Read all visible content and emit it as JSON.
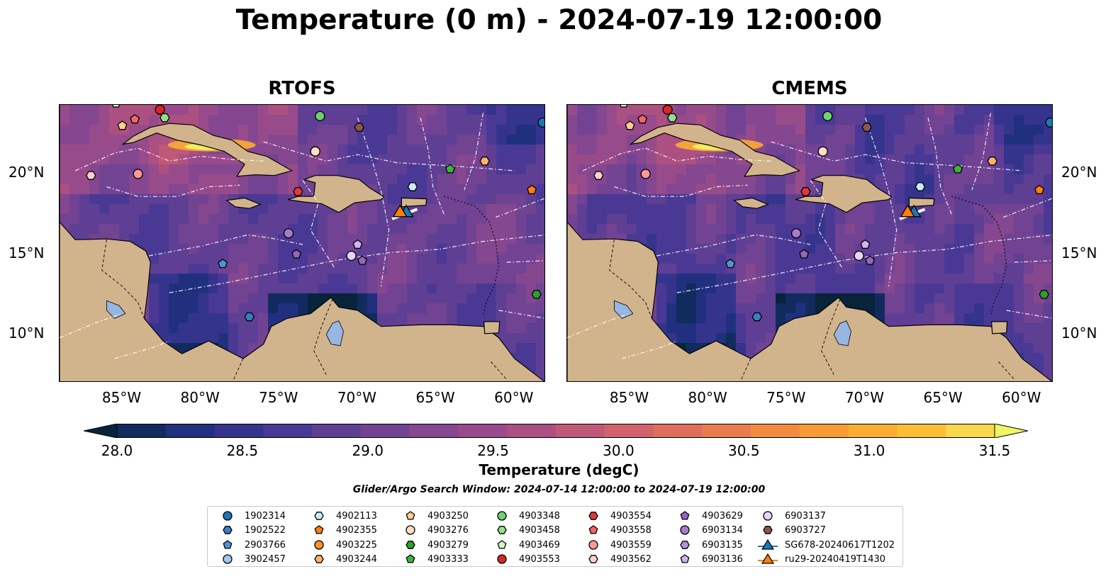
{
  "figure": {
    "title": "Temperature (0 m) - 2024-07-19 12:00:00",
    "panels": [
      {
        "title": "RTOFS"
      },
      {
        "title": "CMEMS"
      }
    ],
    "lon_ticks": [
      "85°W",
      "80°W",
      "75°W",
      "70°W",
      "65°W",
      "60°W"
    ],
    "lat_ticks": [
      "20°N",
      "15°N",
      "10°N"
    ],
    "lon_range": [
      -89,
      -58
    ],
    "lat_range": [
      7,
      24.3
    ]
  },
  "colorbar": {
    "label": "Temperature (degC)",
    "range": [
      28.0,
      31.5
    ],
    "step": 0.25,
    "ticks": [
      "28.0",
      "28.5",
      "29.0",
      "29.5",
      "30.0",
      "30.5",
      "31.0",
      "31.5"
    ],
    "extend": "both",
    "colors": [
      "#07243a",
      "#112b5e",
      "#21307e",
      "#35348d",
      "#4a3994",
      "#5f3f94",
      "#724393",
      "#85478f",
      "#984b8a",
      "#ac5082",
      "#c05878",
      "#d2626b",
      "#e06e5c",
      "#ea7b4d",
      "#f28b40",
      "#f79b36",
      "#fbac33",
      "#fdbe36",
      "#f8d84a",
      "#eef566"
    ]
  },
  "search_window": "Glider/Argo Search Window: 2024-07-14 12:00:00 to 2024-07-19 12:00:00",
  "legend": {
    "items": [
      {
        "label": "1902314",
        "marker": "circle",
        "color": "#1f77b4"
      },
      {
        "label": "1902522",
        "marker": "hexagon",
        "color": "#3a7fc0"
      },
      {
        "label": "2903766",
        "marker": "pentagon",
        "color": "#4f94d0"
      },
      {
        "label": "3902457",
        "marker": "circle",
        "color": "#9ec9f0"
      },
      {
        "label": "4902113",
        "marker": "hexagon",
        "color": "#c9ecfb"
      },
      {
        "label": "4902355",
        "marker": "pentagon",
        "color": "#ff7f0e"
      },
      {
        "label": "4903225",
        "marker": "circle",
        "color": "#ff922e"
      },
      {
        "label": "4903244",
        "marker": "hexagon",
        "color": "#ffb16a"
      },
      {
        "label": "4903250",
        "marker": "pentagon",
        "color": "#ffcf8f"
      },
      {
        "label": "4903276",
        "marker": "circle",
        "color": "#ffe0c2"
      },
      {
        "label": "4903279",
        "marker": "hexagon",
        "color": "#2ca02c"
      },
      {
        "label": "4903333",
        "marker": "pentagon",
        "color": "#3cb43c"
      },
      {
        "label": "4903348",
        "marker": "circle",
        "color": "#6fd06f"
      },
      {
        "label": "4903458",
        "marker": "hexagon",
        "color": "#98df8a"
      },
      {
        "label": "4903469",
        "marker": "pentagon",
        "color": "#d2f5c8"
      },
      {
        "label": "4903553",
        "marker": "circle",
        "color": "#d62728"
      },
      {
        "label": "4903554",
        "marker": "hexagon",
        "color": "#e0393b"
      },
      {
        "label": "4903558",
        "marker": "pentagon",
        "color": "#f06565"
      },
      {
        "label": "4903559",
        "marker": "circle",
        "color": "#ff9896"
      },
      {
        "label": "4903562",
        "marker": "hexagon",
        "color": "#ffd0cf"
      },
      {
        "label": "4903629",
        "marker": "pentagon",
        "color": "#9467bd"
      },
      {
        "label": "6903134",
        "marker": "circle",
        "color": "#a57ccb"
      },
      {
        "label": "6903135",
        "marker": "hexagon",
        "color": "#b493d8"
      },
      {
        "label": "6903136",
        "marker": "pentagon",
        "color": "#d0b6ee"
      },
      {
        "label": "6903137",
        "marker": "circle",
        "color": "#e8d4fa"
      },
      {
        "label": "6903727",
        "marker": "hexagon",
        "color": "#8c564b"
      },
      {
        "label": "SG678-20240617T1202",
        "marker": "triangle-line",
        "color": "#1f77b4"
      },
      {
        "label": "ru29-20240419T1430",
        "marker": "triangle-line",
        "color": "#ff7f0e"
      }
    ]
  },
  "map_data": {
    "floats": [
      {
        "id": "4903469",
        "lon": -85.4,
        "lat": 24.4
      },
      {
        "id": "4903553",
        "lon": -82.6,
        "lat": 24.0
      },
      {
        "id": "4903558",
        "lon": -84.2,
        "lat": 23.4
      },
      {
        "id": "4903250",
        "lon": -85.0,
        "lat": 23.0
      },
      {
        "id": "4903458",
        "lon": -82.3,
        "lat": 23.5
      },
      {
        "id": "4903348",
        "lon": -72.4,
        "lat": 23.6
      },
      {
        "id": "6903727",
        "lon": -69.9,
        "lat": 22.9
      },
      {
        "id": "1902314",
        "lon": -58.2,
        "lat": 23.2
      },
      {
        "id": "4903276",
        "lon": -72.7,
        "lat": 21.4
      },
      {
        "id": "4903244",
        "lon": -61.9,
        "lat": 20.8
      },
      {
        "id": "4903333",
        "lon": -64.1,
        "lat": 20.3
      },
      {
        "id": "4903559",
        "lon": -84.0,
        "lat": 20.0
      },
      {
        "id": "4903562",
        "lon": -87.0,
        "lat": 19.9
      },
      {
        "id": "4902113",
        "lon": -66.5,
        "lat": 19.2
      },
      {
        "id": "4902355",
        "lon": -58.9,
        "lat": 19.0
      },
      {
        "id": "4903554",
        "lon": -73.8,
        "lat": 18.9
      },
      {
        "id": "6903134",
        "lon": -74.4,
        "lat": 16.3
      },
      {
        "id": "6903136",
        "lon": -70.0,
        "lat": 15.6
      },
      {
        "id": "4903629",
        "lon": -73.9,
        "lat": 15.0
      },
      {
        "id": "6903137",
        "lon": -70.4,
        "lat": 14.9
      },
      {
        "id": "4903629",
        "lon": -69.7,
        "lat": 14.6
      },
      {
        "id": "2903766",
        "lon": -78.6,
        "lat": 14.4
      },
      {
        "id": "4903279",
        "lon": -58.6,
        "lat": 12.5
      },
      {
        "id": "1902522",
        "lon": -76.9,
        "lat": 11.1
      }
    ],
    "gliders": [
      {
        "id": "SG678-20240617T1202",
        "lon": -66.9,
        "lat": 17.6
      },
      {
        "id": "ru29-20240419T1430",
        "lon": -67.3,
        "lat": 17.6
      }
    ]
  }
}
